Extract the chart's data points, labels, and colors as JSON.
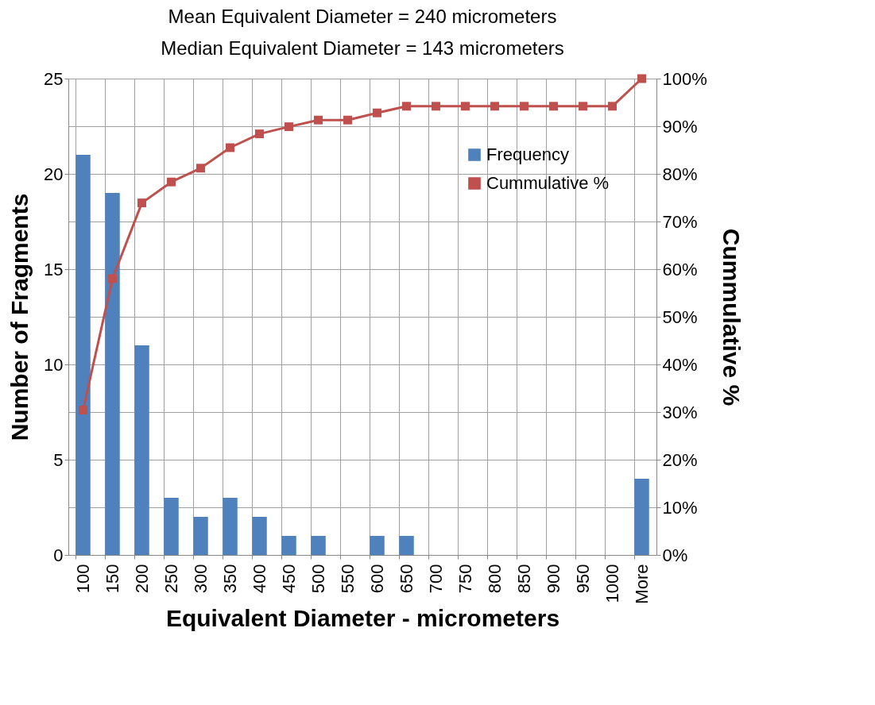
{
  "chart_data": {
    "type": "bar",
    "annotations": [
      "Mean Equivalent Diameter = 240 micrometers",
      "Median Equivalent Diameter = 143 micrometers"
    ],
    "xlabel": "Equivalent Diameter - micrometers",
    "ylabel": "Number of Fragments",
    "y2label": "Cummulative %",
    "categories": [
      "100",
      "150",
      "200",
      "250",
      "300",
      "350",
      "400",
      "450",
      "500",
      "550",
      "600",
      "650",
      "700",
      "750",
      "800",
      "850",
      "900",
      "950",
      "1000",
      "More"
    ],
    "series": [
      {
        "name": "Frequency",
        "color": "#4f81bd",
        "values": [
          21,
          19,
          11,
          3,
          2,
          3,
          2,
          1,
          1,
          0,
          1,
          1,
          0,
          0,
          0,
          0,
          0,
          0,
          0,
          4
        ]
      },
      {
        "name": "Cummulative %",
        "type": "line",
        "axis": "y2",
        "color": "#c0504d",
        "marker": "square",
        "values": [
          30.4,
          58.0,
          73.9,
          78.3,
          81.2,
          85.5,
          88.4,
          89.9,
          91.3,
          91.3,
          92.8,
          94.2,
          94.2,
          94.2,
          94.2,
          94.2,
          94.2,
          94.2,
          94.2,
          100
        ]
      }
    ],
    "ylim": [
      0,
      25
    ],
    "yticks": [
      0,
      5,
      10,
      15,
      20,
      25
    ],
    "y2lim": [
      0,
      100
    ],
    "y2ticks": [
      {
        "value": 0,
        "label": "0%"
      },
      {
        "value": 10,
        "label": "10%"
      },
      {
        "value": 20,
        "label": "20%"
      },
      {
        "value": 30,
        "label": "30%"
      },
      {
        "value": 40,
        "label": "40%"
      },
      {
        "value": 50,
        "label": "50%"
      },
      {
        "value": 60,
        "label": "60%"
      },
      {
        "value": 70,
        "label": "70%"
      },
      {
        "value": 80,
        "label": "80%"
      },
      {
        "value": 90,
        "label": "90%"
      },
      {
        "value": 100,
        "label": "100%"
      }
    ],
    "grid": true,
    "legend": "top right"
  }
}
